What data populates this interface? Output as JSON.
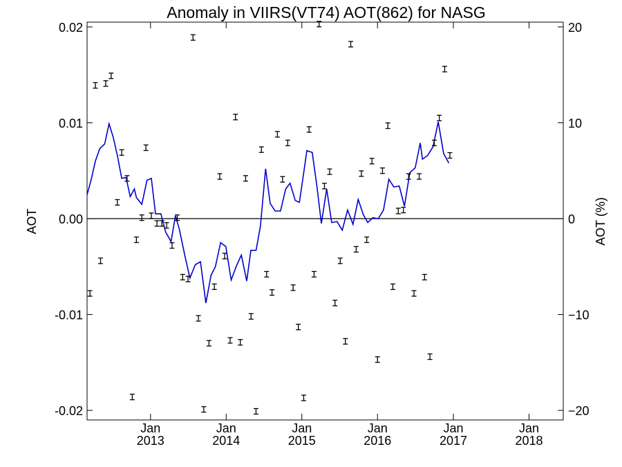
{
  "chart_data": {
    "type": "line",
    "title": "Anomaly in VIIRS(VT74) AOT(862) for NASG",
    "ylabel": "AOT",
    "y2label": "AOT (%)",
    "x_range": [
      "2012-03-01",
      "2018-06-15"
    ],
    "ylim": [
      -0.021,
      0.0205
    ],
    "y2lim": [
      -21,
      20.5
    ],
    "yticks": [
      {
        "value": 0.02,
        "label": "0.02"
      },
      {
        "value": 0.01,
        "label": "0.01"
      },
      {
        "value": 0.0,
        "label": "0.00"
      },
      {
        "value": -0.01,
        "label": "-0.01"
      },
      {
        "value": -0.02,
        "label": "-0.02"
      }
    ],
    "y2ticks": [
      {
        "value": 20,
        "label": "20"
      },
      {
        "value": 10,
        "label": "10"
      },
      {
        "value": 0,
        "label": "0"
      },
      {
        "value": -10,
        "label": "−10"
      },
      {
        "value": -20,
        "label": "−20"
      }
    ],
    "xticks": [
      {
        "date": "2013-01-01",
        "month": "Jan",
        "year": "2013"
      },
      {
        "date": "2014-01-01",
        "month": "Jan",
        "year": "2014"
      },
      {
        "date": "2015-01-01",
        "month": "Jan",
        "year": "2015"
      },
      {
        "date": "2016-01-01",
        "month": "Jan",
        "year": "2016"
      },
      {
        "date": "2017-01-01",
        "month": "Jan",
        "year": "2017"
      },
      {
        "date": "2018-01-01",
        "month": "Jan",
        "year": "2018"
      }
    ],
    "zero_line": 0,
    "colors": {
      "line": "#0000cc",
      "points": "#000000",
      "zero_line": "#000000"
    },
    "series": [
      {
        "type": "line",
        "points": [
          [
            "2012-03-01",
            0.0025
          ],
          [
            "2012-03-20",
            0.004
          ],
          [
            "2012-04-10",
            0.006
          ],
          [
            "2012-05-01",
            0.0073
          ],
          [
            "2012-05-25",
            0.0078
          ],
          [
            "2012-06-15",
            0.0099
          ],
          [
            "2012-07-05",
            0.0085
          ],
          [
            "2012-07-25",
            0.0066
          ],
          [
            "2012-08-15",
            0.0042
          ],
          [
            "2012-09-05",
            0.0043
          ],
          [
            "2012-09-25",
            0.0023
          ],
          [
            "2012-10-15",
            0.0031
          ],
          [
            "2012-10-25",
            0.0022
          ],
          [
            "2012-11-20",
            0.0015
          ],
          [
            "2012-12-15",
            0.004
          ],
          [
            "2013-01-05",
            0.0042
          ],
          [
            "2013-01-25",
            0.0005
          ],
          [
            "2013-02-20",
            0.0005
          ],
          [
            "2013-03-15",
            -0.0014
          ],
          [
            "2013-04-10",
            -0.0024
          ],
          [
            "2013-05-01",
            0.0003
          ],
          [
            "2013-05-20",
            -0.0011
          ],
          [
            "2013-06-15",
            -0.0038
          ],
          [
            "2013-07-10",
            -0.0062
          ],
          [
            "2013-08-05",
            -0.0048
          ],
          [
            "2013-08-30",
            -0.0045
          ],
          [
            "2013-09-25",
            -0.0088
          ],
          [
            "2013-10-20",
            -0.0059
          ],
          [
            "2013-11-10",
            -0.005
          ],
          [
            "2013-12-05",
            -0.0025
          ],
          [
            "2013-12-30",
            -0.0029
          ],
          [
            "2014-01-25",
            -0.0064
          ],
          [
            "2014-02-20",
            -0.0049
          ],
          [
            "2014-03-15",
            -0.0038
          ],
          [
            "2014-04-10",
            -0.0065
          ],
          [
            "2014-04-30",
            -0.0033
          ],
          [
            "2014-05-25",
            -0.0033
          ],
          [
            "2014-06-15",
            -0.0008
          ],
          [
            "2014-07-10",
            0.0052
          ],
          [
            "2014-08-01",
            0.0016
          ],
          [
            "2014-08-25",
            0.0008
          ],
          [
            "2014-09-20",
            0.0008
          ],
          [
            "2014-10-15",
            0.0031
          ],
          [
            "2014-11-05",
            0.0037
          ],
          [
            "2014-11-30",
            0.0019
          ],
          [
            "2014-12-20",
            0.0017
          ],
          [
            "2015-01-10",
            0.0048
          ],
          [
            "2015-01-25",
            0.0071
          ],
          [
            "2015-02-20",
            0.0069
          ],
          [
            "2015-03-15",
            0.0033
          ],
          [
            "2015-04-05",
            -0.0005
          ],
          [
            "2015-05-01",
            0.0031
          ],
          [
            "2015-05-25",
            -0.0004
          ],
          [
            "2015-06-20",
            -0.0003
          ],
          [
            "2015-07-15",
            -0.0012
          ],
          [
            "2015-08-10",
            0.0009
          ],
          [
            "2015-09-05",
            -0.0006
          ],
          [
            "2015-09-30",
            0.002
          ],
          [
            "2015-10-25",
            0.0004
          ],
          [
            "2015-11-15",
            -0.0004
          ],
          [
            "2015-12-10",
            0.0001
          ],
          [
            "2016-01-05",
            0.0
          ],
          [
            "2016-01-30",
            0.0009
          ],
          [
            "2016-02-25",
            0.0041
          ],
          [
            "2016-03-20",
            0.0033
          ],
          [
            "2016-04-15",
            0.0034
          ],
          [
            "2016-05-10",
            0.0013
          ],
          [
            "2016-06-05",
            0.0048
          ],
          [
            "2016-07-01",
            0.0053
          ],
          [
            "2016-07-25",
            0.0079
          ],
          [
            "2016-08-05",
            0.0062
          ],
          [
            "2016-08-30",
            0.0066
          ],
          [
            "2016-09-25",
            0.0075
          ],
          [
            "2016-10-20",
            0.0101
          ],
          [
            "2016-11-15",
            0.0068
          ],
          [
            "2016-12-10",
            0.0058
          ]
        ]
      },
      {
        "type": "scatter",
        "points": [
          [
            "2012-03-15",
            -0.0078
          ],
          [
            "2012-04-10",
            0.0139
          ],
          [
            "2012-05-05",
            -0.0044
          ],
          [
            "2012-05-30",
            0.0141
          ],
          [
            "2012-06-25",
            0.0149
          ],
          [
            "2012-07-25",
            0.0017
          ],
          [
            "2012-08-15",
            0.0069
          ],
          [
            "2012-09-10",
            0.0042
          ],
          [
            "2012-10-05",
            -0.0186
          ],
          [
            "2012-10-25",
            -0.0022
          ],
          [
            "2012-11-20",
            0.0001
          ],
          [
            "2012-12-10",
            0.0074
          ],
          [
            "2013-01-05",
            0.0003
          ],
          [
            "2013-02-01",
            -0.0005
          ],
          [
            "2013-02-25",
            -0.0005
          ],
          [
            "2013-03-20",
            -0.0007
          ],
          [
            "2013-04-15",
            -0.0028
          ],
          [
            "2013-05-10",
            0.0001
          ],
          [
            "2013-06-05",
            -0.0061
          ],
          [
            "2013-07-01",
            -0.0063
          ],
          [
            "2013-07-25",
            0.0189
          ],
          [
            "2013-08-20",
            -0.0104
          ],
          [
            "2013-09-15",
            -0.0199
          ],
          [
            "2013-10-10",
            -0.013
          ],
          [
            "2013-11-05",
            -0.0071
          ],
          [
            "2013-12-01",
            0.0044
          ],
          [
            "2013-12-25",
            -0.0039
          ],
          [
            "2014-01-20",
            -0.0127
          ],
          [
            "2014-02-15",
            0.0106
          ],
          [
            "2014-03-10",
            -0.0129
          ],
          [
            "2014-04-05",
            0.0042
          ],
          [
            "2014-05-01",
            -0.0102
          ],
          [
            "2014-05-25",
            -0.0201
          ],
          [
            "2014-06-20",
            0.0072
          ],
          [
            "2014-07-15",
            -0.0058
          ],
          [
            "2014-08-10",
            -0.0077
          ],
          [
            "2014-09-05",
            0.0088
          ],
          [
            "2014-09-30",
            0.0041
          ],
          [
            "2014-10-25",
            0.0079
          ],
          [
            "2014-11-20",
            -0.0072
          ],
          [
            "2014-12-15",
            -0.0113
          ],
          [
            "2015-01-10",
            -0.0187
          ],
          [
            "2015-02-05",
            0.0093
          ],
          [
            "2015-03-01",
            -0.0058
          ],
          [
            "2015-03-25",
            0.0203
          ],
          [
            "2015-04-20",
            0.0034
          ],
          [
            "2015-05-15",
            0.0049
          ],
          [
            "2015-06-10",
            -0.0088
          ],
          [
            "2015-07-05",
            -0.0044
          ],
          [
            "2015-07-30",
            -0.0128
          ],
          [
            "2015-08-25",
            0.0182
          ],
          [
            "2015-09-20",
            -0.0032
          ],
          [
            "2015-10-15",
            0.0047
          ],
          [
            "2015-11-10",
            -0.0022
          ],
          [
            "2015-12-05",
            0.006
          ],
          [
            "2016-01-01",
            -0.0147
          ],
          [
            "2016-01-25",
            0.005
          ],
          [
            "2016-02-20",
            0.0097
          ],
          [
            "2016-03-15",
            -0.0071
          ],
          [
            "2016-04-10",
            0.0008
          ],
          [
            "2016-05-05",
            0.0009
          ],
          [
            "2016-05-30",
            0.0044
          ],
          [
            "2016-06-25",
            -0.0078
          ],
          [
            "2016-07-20",
            0.0044
          ],
          [
            "2016-08-15",
            -0.0061
          ],
          [
            "2016-09-10",
            -0.0144
          ],
          [
            "2016-10-01",
            0.0079
          ],
          [
            "2016-10-25",
            0.0105
          ],
          [
            "2016-11-20",
            0.0156
          ],
          [
            "2016-12-15",
            0.0066
          ]
        ]
      }
    ]
  }
}
